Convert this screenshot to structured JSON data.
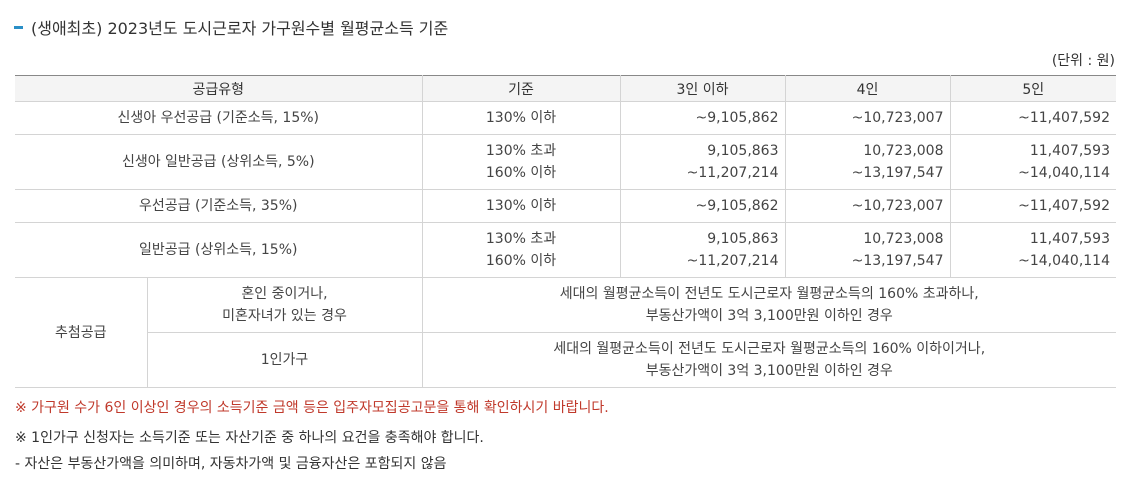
{
  "title": "(생애최초) 2023년도 도시근로자 가구원수별 월평균소득 기준",
  "unit": "(단위 : 원)",
  "headers": [
    "공급유형",
    "기준",
    "3인 이하",
    "4인",
    "5인"
  ],
  "rows": [
    {
      "type": "신생아 우선공급 (기준소득, 15%)",
      "criteria": "130% 이하",
      "c3": "~9,105,862",
      "c4": "~10,723,007",
      "c5": "~11,407,592"
    },
    {
      "type": "신생아 일반공급 (상위소득, 5%)",
      "criteria": "130% 초과\n160% 이하",
      "c3": "9,105,863\n~11,207,214",
      "c4": "10,723,008\n~13,197,547",
      "c5": "11,407,593\n~14,040,114"
    },
    {
      "type": "우선공급 (기준소득, 35%)",
      "criteria": "130% 이하",
      "c3": "~9,105,862",
      "c4": "~10,723,007",
      "c5": "~11,407,592"
    },
    {
      "type": "일반공급 (상위소득, 15%)",
      "criteria": "130% 초과\n160% 이하",
      "c3": "9,105,863\n~11,207,214",
      "c4": "10,723,008\n~13,197,547",
      "c5": "11,407,593\n~14,040,114"
    }
  ],
  "lottery": {
    "label": "추첨공급",
    "sub": [
      {
        "cond": "혼인 중이거나,\n미혼자녀가 있는 경우",
        "desc": "세대의 월평균소득이 전년도 도시근로자 월평균소득의 160% 초과하나,\n부동산가액이 3억 3,100만원 이하인 경우"
      },
      {
        "cond": "1인가구",
        "desc": "세대의 월평균소득이 전년도 도시근로자 월평균소득의 160% 이하이거나,\n부동산가액이 3억 3,100만원 이하인 경우"
      }
    ]
  },
  "notes": {
    "red": "※ 가구원 수가 6인 이상인 경우의 소득기준 금액 등은 입주자모집공고문을 통해 확인하시기 바랍니다.",
    "single": "※ 1인가구 신청자는 소득기준 또는 자산기준 중 하나의 요건을 충족해야 합니다.",
    "asset": "- 자산은 부동산가액을 의미하며, 자동차가액 및 금융자산은 포함되지 않음"
  }
}
